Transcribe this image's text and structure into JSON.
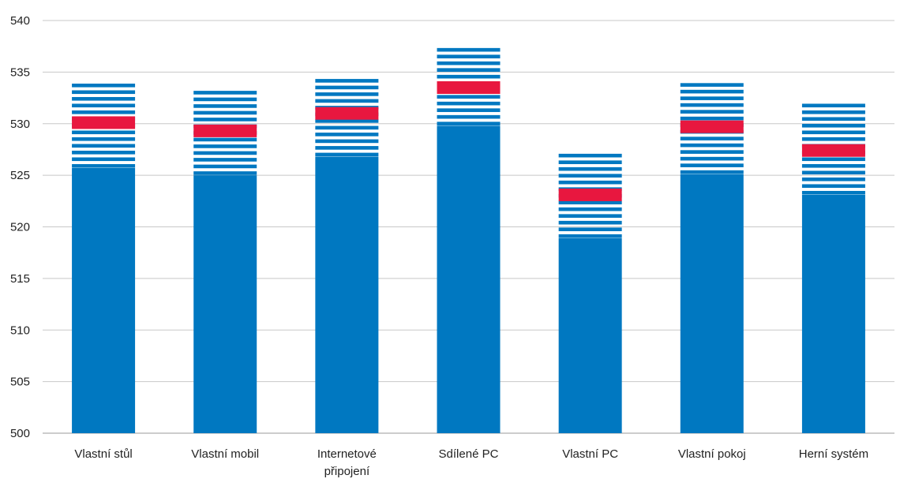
{
  "chart_data": {
    "type": "bar",
    "title": "",
    "xlabel": "",
    "ylabel": "",
    "ylim": [
      500,
      540
    ],
    "yticks": [
      500,
      505,
      510,
      515,
      520,
      525,
      530,
      535,
      540
    ],
    "grid": true,
    "legend": "none",
    "categories": [
      [
        "Vlastní stůl"
      ],
      [
        "Vlastní mobil"
      ],
      [
        "Internetové",
        "připojení"
      ],
      [
        "Sdílené PC"
      ],
      [
        "Vlastní PC"
      ],
      [
        "Vlastní pokoj"
      ],
      [
        "Herní systém"
      ]
    ],
    "series": [
      {
        "values": [
          525.7,
          525.0,
          526.8,
          529.8,
          518.9,
          525.1,
          523.1
        ]
      },
      {
        "values": [
          534.0,
          533.6,
          534.9,
          537.4,
          527.4,
          534.0,
          532.1
        ]
      },
      {
        "values": [
          530.1,
          529.3,
          531.0,
          533.5,
          523.1,
          529.7,
          527.4
        ]
      }
    ],
    "colors": {
      "bar": "#0078c1",
      "marker": "#e8173f",
      "grid": "#c8c8c8",
      "axis": "#9a9a9a",
      "text": "#222222"
    }
  }
}
